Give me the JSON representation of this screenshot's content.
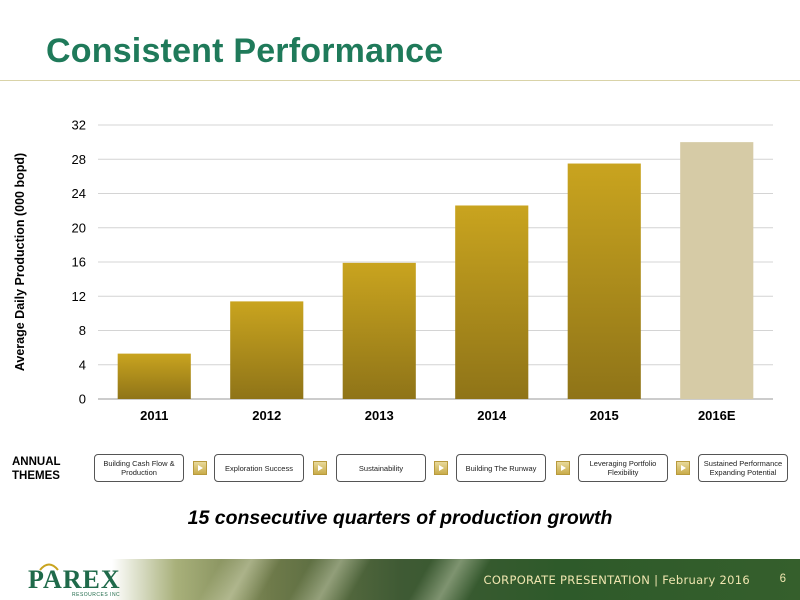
{
  "slide": {
    "title": "Consistent Performance",
    "tagline": "15 consecutive quarters of production growth",
    "themes_label": "ANNUAL THEMES",
    "themes": [
      "Building Cash Flow & Production",
      "Exploration Success",
      "Sustainability",
      "Building The Runway",
      "Leveraging  Portfolio Flexibility",
      "Sustained Performance Expanding Potential"
    ]
  },
  "footer": {
    "logo_word": "PAREX",
    "logo_sub": "RESOURCES INC",
    "text": "CORPORATE PRESENTATION | February 2016",
    "page_number": "6"
  },
  "colors": {
    "title": "#1f7a5a",
    "bar_top": "#c9a41f",
    "bar_bottom": "#8f7418",
    "estimate_bar": "#d6cba6"
  },
  "chart_data": {
    "type": "bar",
    "categories": [
      "2011",
      "2012",
      "2013",
      "2014",
      "2015",
      "2016E"
    ],
    "values": [
      5.3,
      11.4,
      15.9,
      22.6,
      27.5,
      30.0
    ],
    "title": "",
    "xlabel": "",
    "ylabel": "Average Daily Production (000 bopd)",
    "ylim": [
      0,
      32
    ],
    "yticks": [
      0,
      4,
      8,
      12,
      16,
      20,
      24,
      28,
      32
    ],
    "grid": true,
    "estimate_categories": [
      "2016E"
    ]
  }
}
